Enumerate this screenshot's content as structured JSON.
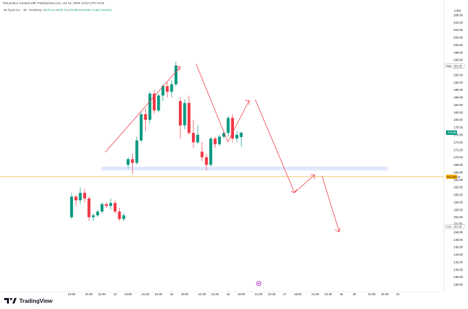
{
  "attribution": "TelLambo1 created with TradingView.com, Jul 16, 2026 13:52 UTC+5:30",
  "symbol": "SK hynix Inc. · 30 · NASDAQ",
  "ohlc": {
    "o_label": "O",
    "o": "175.41",
    "h_label": "H",
    "h": "176.74",
    "l_label": "L",
    "l": "172.88",
    "c_label": "C",
    "c": "176.58",
    "change": "+1.08 (+0.62%)"
  },
  "currency": "USD",
  "brand": "TradingView",
  "colors": {
    "up": "#089981",
    "down": "#f23645",
    "arrow": "#f23645",
    "zone": "#dbe3fb",
    "price_line": "#f5a623"
  },
  "chart_data": {
    "type": "candlestick",
    "ylim": [
      135,
      209
    ],
    "y_ticks": [
      136,
      138,
      140,
      142,
      144,
      146,
      148,
      150,
      152,
      154,
      156,
      158,
      160,
      162,
      164,
      166,
      168,
      170,
      172,
      174,
      176,
      178,
      180,
      182,
      184,
      186,
      188,
      190,
      192,
      194,
      196,
      198,
      200,
      202,
      204,
      206,
      208
    ],
    "x_ticks": [
      {
        "label": "19:00",
        "i": 0
      },
      {
        "label": "21:00",
        "i": 4
      },
      {
        "label": "22:30",
        "i": 7
      },
      {
        "label": "14",
        "i": 10
      },
      {
        "label": "19:00",
        "i": 13
      },
      {
        "label": "21:00",
        "i": 17
      },
      {
        "label": "22:30",
        "i": 20
      },
      {
        "label": "15",
        "i": 23
      },
      {
        "label": "19:00",
        "i": 26
      },
      {
        "label": "21:00",
        "i": 30
      },
      {
        "label": "22:30",
        "i": 33
      },
      {
        "label": "16",
        "i": 36
      },
      {
        "label": "19:00",
        "i": 39
      },
      {
        "label": "21:00",
        "i": 43
      },
      {
        "label": "22:30",
        "i": 46
      },
      {
        "label": "17",
        "i": 49
      },
      {
        "label": "19:00",
        "i": 52
      },
      {
        "label": "21:00",
        "i": 56
      },
      {
        "label": "22:30",
        "i": 59
      },
      {
        "label": "18",
        "i": 62
      },
      {
        "label": "20",
        "i": 65
      },
      {
        "label": "21:00",
        "i": 69
      },
      {
        "label": "22:30",
        "i": 72
      },
      {
        "label": "21",
        "i": 75
      }
    ],
    "candles": [
      {
        "o": 154.0,
        "h": 160.5,
        "l": 153.5,
        "c": 159.5
      },
      {
        "o": 159.5,
        "h": 160.0,
        "l": 157.0,
        "c": 158.5
      },
      {
        "o": 158.5,
        "h": 162.0,
        "l": 157.5,
        "c": 160.5
      },
      {
        "o": 160.5,
        "h": 161.5,
        "l": 158.0,
        "c": 159.0
      },
      {
        "o": 159.0,
        "h": 159.5,
        "l": 153.0,
        "c": 154.0
      },
      {
        "o": 154.0,
        "h": 155.0,
        "l": 153.0,
        "c": 154.5
      },
      {
        "o": 154.5,
        "h": 156.0,
        "l": 154.0,
        "c": 155.5
      },
      {
        "o": 155.5,
        "h": 158.0,
        "l": 155.0,
        "c": 157.5
      },
      {
        "o": 157.5,
        "h": 158.0,
        "l": 156.5,
        "c": 157.0
      },
      {
        "o": 157.0,
        "h": 159.0,
        "l": 156.0,
        "c": 157.8
      },
      {
        "o": 157.8,
        "h": 158.5,
        "l": 155.0,
        "c": 155.5
      },
      {
        "o": 155.5,
        "h": 156.5,
        "l": 153.0,
        "c": 153.5
      },
      {
        "o": 153.5,
        "h": 155.0,
        "l": 153.0,
        "c": 154.5
      },
      {
        "o": 168.0,
        "h": 170.0,
        "l": 167.0,
        "c": 169.5
      },
      {
        "o": 169.5,
        "h": 171.0,
        "l": 165.5,
        "c": 168.5
      },
      {
        "o": 168.5,
        "h": 175.5,
        "l": 168.0,
        "c": 174.5
      },
      {
        "o": 174.5,
        "h": 182.0,
        "l": 174.0,
        "c": 181.5
      },
      {
        "o": 181.5,
        "h": 183.0,
        "l": 177.0,
        "c": 180.0
      },
      {
        "o": 180.0,
        "h": 187.5,
        "l": 179.0,
        "c": 187.0
      },
      {
        "o": 187.0,
        "h": 188.0,
        "l": 181.5,
        "c": 182.5
      },
      {
        "o": 182.5,
        "h": 187.0,
        "l": 182.0,
        "c": 186.5
      },
      {
        "o": 186.5,
        "h": 189.5,
        "l": 185.0,
        "c": 189.0
      },
      {
        "o": 189.0,
        "h": 190.0,
        "l": 186.0,
        "c": 187.5
      },
      {
        "o": 187.5,
        "h": 190.5,
        "l": 186.0,
        "c": 189.5
      },
      {
        "o": 189.5,
        "h": 195.5,
        "l": 189.0,
        "c": 194.5
      },
      {
        "o": 185.0,
        "h": 186.0,
        "l": 175.0,
        "c": 178.5
      },
      {
        "o": 178.5,
        "h": 185.5,
        "l": 177.5,
        "c": 184.5
      },
      {
        "o": 184.5,
        "h": 186.5,
        "l": 176.0,
        "c": 176.5
      },
      {
        "o": 176.5,
        "h": 180.0,
        "l": 172.5,
        "c": 174.0
      },
      {
        "o": 174.0,
        "h": 178.5,
        "l": 173.5,
        "c": 176.0
      },
      {
        "o": 171.5,
        "h": 174.0,
        "l": 169.0,
        "c": 170.0
      },
      {
        "o": 170.0,
        "h": 171.0,
        "l": 166.5,
        "c": 168.0
      },
      {
        "o": 168.0,
        "h": 175.5,
        "l": 167.5,
        "c": 175.0
      },
      {
        "o": 175.0,
        "h": 175.5,
        "l": 172.5,
        "c": 173.5
      },
      {
        "o": 173.5,
        "h": 176.0,
        "l": 173.0,
        "c": 175.5
      },
      {
        "o": 175.5,
        "h": 177.0,
        "l": 175.0,
        "c": 176.5
      },
      {
        "o": 176.5,
        "h": 181.0,
        "l": 175.5,
        "c": 180.5
      },
      {
        "o": 180.5,
        "h": 181.5,
        "l": 174.0,
        "c": 175.0
      },
      {
        "o": 175.0,
        "h": 177.0,
        "l": 174.0,
        "c": 176.0
      },
      {
        "o": 175.41,
        "h": 176.74,
        "l": 172.88,
        "c": 176.58
      }
    ],
    "zone": {
      "y_low": 166.5,
      "y_high": 167.5
    },
    "price_line": {
      "y": 164.8,
      "label": "Thu 164.88"
    },
    "markers": [
      {
        "kind": "high",
        "label": "High",
        "value": "194.45",
        "y": 194.45
      },
      {
        "kind": "last",
        "label": "",
        "value": "176.58",
        "y": 176.58
      },
      {
        "kind": "low",
        "label": "Low",
        "value": "151.50",
        "y": 151.5
      },
      {
        "kind": "small",
        "label": "",
        "value": "152.46",
        "y": 152.46
      }
    ]
  }
}
